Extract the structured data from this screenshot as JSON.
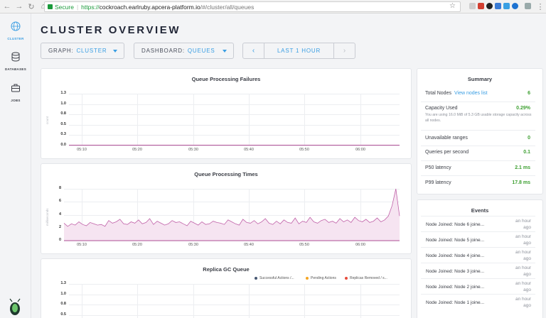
{
  "browser": {
    "secure_label": "Secure",
    "url_scheme": "https://",
    "url_host": "cockroach.earlruby.apcera-platform.io",
    "url_path": "/#/cluster/all/queues"
  },
  "sidebar": {
    "items": [
      {
        "label": "CLUSTER",
        "icon": "globe-icon",
        "active": true
      },
      {
        "label": "DATABASES",
        "icon": "database-icon",
        "active": false
      },
      {
        "label": "JOBS",
        "icon": "briefcase-icon",
        "active": false
      }
    ]
  },
  "page": {
    "title": "CLUSTER OVERVIEW"
  },
  "toolbar": {
    "graph_key": "GRAPH:",
    "graph_value": "CLUSTER",
    "dashboard_key": "DASHBOARD:",
    "dashboard_value": "QUEUES",
    "prev_label": "‹",
    "time_range": "LAST 1 HOUR",
    "next_label": "›"
  },
  "charts": {
    "failures": {
      "title": "Queue Processing Failures",
      "ylabel": "count",
      "yticks": [
        "1.3",
        "1.0",
        "0.8",
        "0.5",
        "0.3",
        "0.0"
      ],
      "xticks": [
        "05:10",
        "05:20",
        "05:30",
        "05:40",
        "05:50",
        "06:00"
      ]
    },
    "times": {
      "title": "Queue Processing Times",
      "ylabel": "milliseconds",
      "yticks": [
        "8",
        "6",
        "4",
        "2",
        "0"
      ],
      "xticks": [
        "05:10",
        "05:20",
        "05:30",
        "05:40",
        "05:50",
        "06:00"
      ]
    },
    "replica_gc": {
      "title": "Replica GC Queue",
      "yticks": [
        "1.3",
        "1.0",
        "0.8",
        "0.5"
      ],
      "legend": [
        "Successful Actions /...",
        "Pending Actions",
        "Replicas Removed / s..."
      ],
      "legend_colors": [
        "#475872",
        "#f5a623",
        "#e74c3c"
      ]
    }
  },
  "chart_data": [
    {
      "type": "line",
      "title": "Queue Processing Failures",
      "ylabel": "count",
      "x": [
        "05:05",
        "06:07"
      ],
      "series": [
        {
          "values": [
            0,
            0
          ]
        }
      ],
      "ylim": [
        0,
        1.3
      ]
    },
    {
      "type": "area",
      "title": "Queue Processing Times",
      "ylabel": "milliseconds",
      "ylim": [
        0,
        8
      ],
      "series": [
        {
          "values": [
            2.7,
            2.2,
            2.6,
            2.4,
            2.9,
            2.5,
            2.3,
            2.8,
            2.6,
            2.4,
            2.5,
            2.2,
            3.1,
            2.7,
            2.9,
            3.3,
            2.6,
            2.5,
            2.9,
            2.7,
            3.2,
            2.6,
            2.8,
            3.4,
            2.5,
            3.0,
            2.7,
            2.4,
            2.6,
            3.1,
            2.8,
            2.9,
            2.6,
            2.3,
            3.0,
            2.7,
            2.4,
            2.9,
            2.5,
            2.6,
            3.0,
            2.8,
            2.7,
            2.5,
            3.2,
            2.9,
            2.6,
            2.4,
            3.3,
            2.8,
            2.7,
            3.1,
            2.6,
            2.9,
            3.4,
            2.7,
            2.5,
            3.0,
            2.6,
            3.2,
            2.8,
            2.7,
            3.5,
            2.6,
            3.0,
            2.8,
            3.6,
            2.9,
            2.7,
            3.1,
            3.3,
            2.8,
            3.0,
            2.7,
            3.4,
            2.9,
            3.2,
            2.8,
            3.6,
            3.1,
            2.9,
            3.3,
            2.8,
            3.0,
            3.5,
            2.9,
            3.2,
            3.8,
            5.4,
            8.0,
            3.8
          ]
        }
      ]
    },
    {
      "type": "line",
      "title": "Replica GC Queue",
      "series": [
        {
          "name": "Successful Actions /...",
          "values": []
        },
        {
          "name": "Pending Actions",
          "values": []
        },
        {
          "name": "Replicas Removed / s...",
          "values": []
        }
      ],
      "ylim": [
        0,
        1.3
      ]
    }
  ],
  "summary": {
    "title": "Summary",
    "total_nodes_label": "Total Nodes",
    "view_nodes_link": "View nodes list",
    "total_nodes_value": "6",
    "capacity_label": "Capacity Used",
    "capacity_value": "0.29%",
    "capacity_note": "You are using 16.0 MiB of 5.3 GB usable storage capacity across all nodes.",
    "unavailable_label": "Unavailable ranges",
    "unavailable_value": "0",
    "qps_label": "Queries per second",
    "qps_value": "0.1",
    "p50_label": "P50 latency",
    "p50_value": "2.1 ms",
    "p99_label": "P99 latency",
    "p99_value": "17.8 ms"
  },
  "events": {
    "title": "Events",
    "items": [
      {
        "text": "Node Joined: Node 6 joine...",
        "time": "an hour ago"
      },
      {
        "text": "Node Joined: Node 5 joine...",
        "time": "an hour ago"
      },
      {
        "text": "Node Joined: Node 4 joine...",
        "time": "an hour ago"
      },
      {
        "text": "Node Joined: Node 3 joine...",
        "time": "an hour ago"
      },
      {
        "text": "Node Joined: Node 2 joine...",
        "time": "an hour ago"
      },
      {
        "text": "Node Joined: Node 1 joine...",
        "time": "an hour ago"
      }
    ]
  }
}
